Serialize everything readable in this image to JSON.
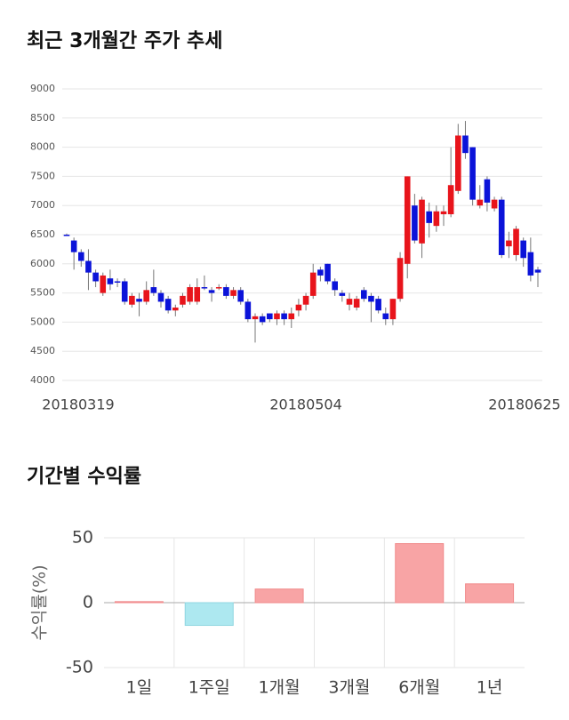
{
  "chart_data": [
    {
      "type": "candlestick",
      "title": "최근 3개월간 주가 추세",
      "categories": [
        "20180319",
        null,
        null,
        null,
        null,
        null,
        null,
        null,
        null,
        null,
        null,
        null,
        null,
        null,
        null,
        null,
        null,
        null,
        null,
        null,
        null,
        null,
        null,
        null,
        null,
        null,
        null,
        null,
        null,
        null,
        null,
        null,
        null,
        "20180504",
        null,
        null,
        null,
        null,
        null,
        null,
        null,
        null,
        null,
        null,
        null,
        null,
        null,
        null,
        null,
        null,
        null,
        null,
        null,
        null,
        null,
        null,
        null,
        null,
        null,
        null,
        null,
        null,
        null,
        null,
        null,
        "20180625"
      ],
      "open": [
        6500,
        6400,
        6200,
        6050,
        5850,
        5500,
        5750,
        5700,
        5700,
        5300,
        5400,
        5350,
        5600,
        5500,
        5400,
        5200,
        5300,
        5350,
        5350,
        5600,
        5550,
        5580,
        5600,
        5450,
        5550,
        5350,
        5050,
        5100,
        5150,
        5050,
        5150,
        5050,
        5200,
        5300,
        5450,
        5900,
        6000,
        5700,
        5500,
        5300,
        5250,
        5550,
        5450,
        5400,
        5150,
        5050,
        5400,
        6000,
        7000,
        6350,
        6900,
        6650,
        6850,
        6850,
        7250,
        8200,
        8000,
        7000,
        7450,
        6950,
        7100,
        6300,
        6150,
        6400,
        6200,
        5900
      ],
      "high": [
        6520,
        6450,
        6250,
        6250,
        5900,
        5850,
        5900,
        5750,
        5750,
        5500,
        5500,
        5700,
        5900,
        5550,
        5450,
        5300,
        5500,
        5650,
        5750,
        5800,
        5600,
        5650,
        5650,
        5600,
        5600,
        5400,
        5150,
        5150,
        5150,
        5200,
        5200,
        5250,
        5400,
        5500,
        6000,
        5950,
        6000,
        5750,
        5550,
        5500,
        5450,
        5600,
        5500,
        5450,
        5250,
        5400,
        6200,
        7500,
        7200,
        7150,
        7050,
        7000,
        7000,
        8000,
        8400,
        8450,
        8000,
        7350,
        7500,
        7150,
        7150,
        6550,
        6650,
        6450,
        6450,
        5950
      ],
      "low": [
        6480,
        5900,
        5950,
        5550,
        5600,
        5450,
        5550,
        5600,
        5300,
        5250,
        5100,
        5300,
        5450,
        5250,
        5150,
        5100,
        5250,
        5300,
        5300,
        5550,
        5350,
        5550,
        5400,
        5400,
        5300,
        5000,
        4650,
        4950,
        5000,
        4950,
        4950,
        4900,
        5100,
        5200,
        5400,
        5700,
        5650,
        5450,
        5350,
        5200,
        5200,
        5350,
        5000,
        5150,
        4950,
        4950,
        5350,
        5750,
        6350,
        6100,
        6450,
        6550,
        6650,
        6800,
        7200,
        7800,
        7000,
        6950,
        6900,
        6900,
        6100,
        6100,
        6050,
        5950,
        5700,
        5600
      ],
      "close": [
        6490,
        6200,
        6050,
        5850,
        5700,
        5800,
        5650,
        5680,
        5350,
        5450,
        5350,
        5550,
        5500,
        5350,
        5200,
        5250,
        5450,
        5600,
        5600,
        5580,
        5500,
        5600,
        5450,
        5550,
        5350,
        5050,
        5100,
        5000,
        5050,
        5150,
        5050,
        5150,
        5300,
        5450,
        5850,
        5800,
        5700,
        5550,
        5450,
        5400,
        5400,
        5400,
        5350,
        5200,
        5050,
        5400,
        6100,
        7500,
        6400,
        7100,
        6700,
        6900,
        6900,
        7350,
        8200,
        7900,
        7100,
        7100,
        7050,
        7100,
        6150,
        6400,
        6600,
        6100,
        5800,
        5850
      ],
      "up_color": "#e8141b",
      "down_color": "#0b13d9",
      "ylim": [
        4000,
        9000
      ],
      "yticks": [
        4000,
        4500,
        5000,
        5500,
        6000,
        6500,
        7000,
        7500,
        8000,
        8500,
        9000
      ],
      "grid": true
    },
    {
      "type": "bar",
      "title": "기간별 수익률",
      "ylabel": "수익률(%)",
      "categories": [
        "1일",
        "1주일",
        "1개월",
        "3개월",
        "6개월",
        "1년"
      ],
      "values": [
        0.8,
        -17.5,
        10.5,
        0,
        45.5,
        14.5
      ],
      "positive_color": "#f8a4a5",
      "negative_color": "#ade8f0",
      "ylim": [
        -50,
        50
      ],
      "yticks": [
        -50,
        0,
        50
      ],
      "grid": true
    }
  ]
}
